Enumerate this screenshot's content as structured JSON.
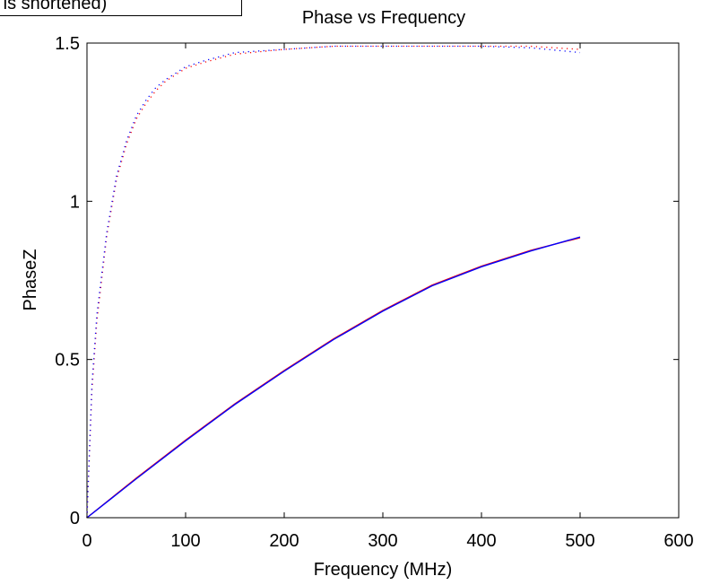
{
  "chart_data": {
    "type": "line",
    "title": "Phase vs Frequency",
    "xlabel": "Frequency (MHz)",
    "ylabel": "PhaseZ",
    "xlim": [
      0,
      600
    ],
    "ylim": [
      0,
      1.5
    ],
    "xticks": [
      0,
      100,
      200,
      300,
      400,
      500,
      600
    ],
    "yticks": [
      0,
      0.5,
      1,
      1.5
    ],
    "xtick_labels": [
      "0",
      "100",
      "200",
      "300",
      "400",
      "500",
      "600"
    ],
    "ytick_labels": [
      "0",
      "0.5",
      "1",
      "1.5"
    ],
    "grid": false,
    "legend_text": "e is shortened)",
    "series": [
      {
        "style": "solid",
        "color": "#ff0000",
        "x": [
          0,
          50,
          100,
          150,
          200,
          250,
          300,
          350,
          400,
          450,
          500
        ],
        "y": [
          0,
          0.125,
          0.245,
          0.36,
          0.465,
          0.565,
          0.655,
          0.735,
          0.795,
          0.845,
          0.885
        ]
      },
      {
        "style": "solid",
        "color": "#0000ff",
        "x": [
          0,
          50,
          100,
          150,
          200,
          250,
          300,
          350,
          400,
          450,
          500
        ],
        "y": [
          0,
          0.123,
          0.243,
          0.358,
          0.463,
          0.563,
          0.653,
          0.733,
          0.793,
          0.843,
          0.887
        ]
      },
      {
        "style": "dotted",
        "color": "#ff0000",
        "x": [
          0,
          5,
          10,
          20,
          30,
          40,
          50,
          60,
          70,
          80,
          100,
          120,
          150,
          200,
          250,
          300,
          350,
          400,
          450,
          500
        ],
        "y": [
          0,
          0.4,
          0.62,
          0.89,
          1.07,
          1.18,
          1.26,
          1.31,
          1.35,
          1.38,
          1.42,
          1.44,
          1.465,
          1.48,
          1.49,
          1.49,
          1.49,
          1.49,
          1.49,
          1.48
        ]
      },
      {
        "style": "dotted",
        "color": "#0000ff",
        "x": [
          0,
          5,
          10,
          20,
          30,
          40,
          50,
          60,
          70,
          80,
          100,
          120,
          150,
          200,
          250,
          300,
          350,
          400,
          450,
          500
        ],
        "y": [
          0,
          0.42,
          0.64,
          0.9,
          1.08,
          1.19,
          1.27,
          1.32,
          1.36,
          1.385,
          1.425,
          1.445,
          1.47,
          1.48,
          1.49,
          1.49,
          1.49,
          1.49,
          1.485,
          1.47
        ]
      }
    ]
  }
}
